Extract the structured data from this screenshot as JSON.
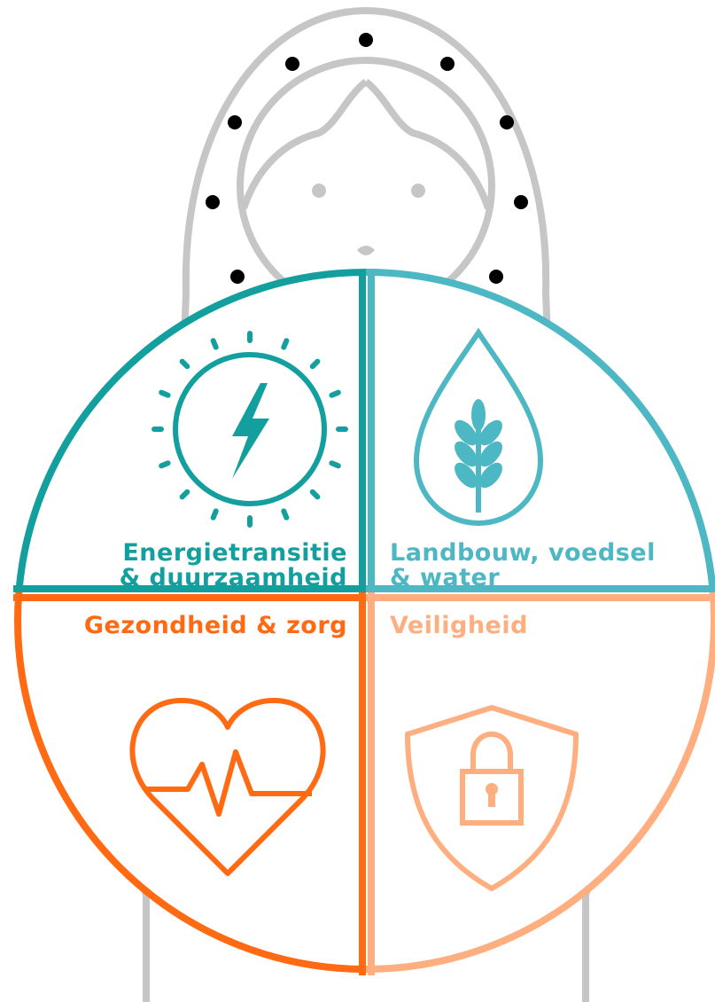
{
  "quadrants": [
    {
      "label_lines": [
        "Energietransitie",
        "& duurzaamheid"
      ]
    },
    {
      "label_lines": [
        "Landbouw, voedsel",
        "& water"
      ]
    },
    {
      "label_lines": [
        "Gezondheid & zorg"
      ]
    },
    {
      "label_lines": [
        "Veiligheid"
      ]
    }
  ]
}
